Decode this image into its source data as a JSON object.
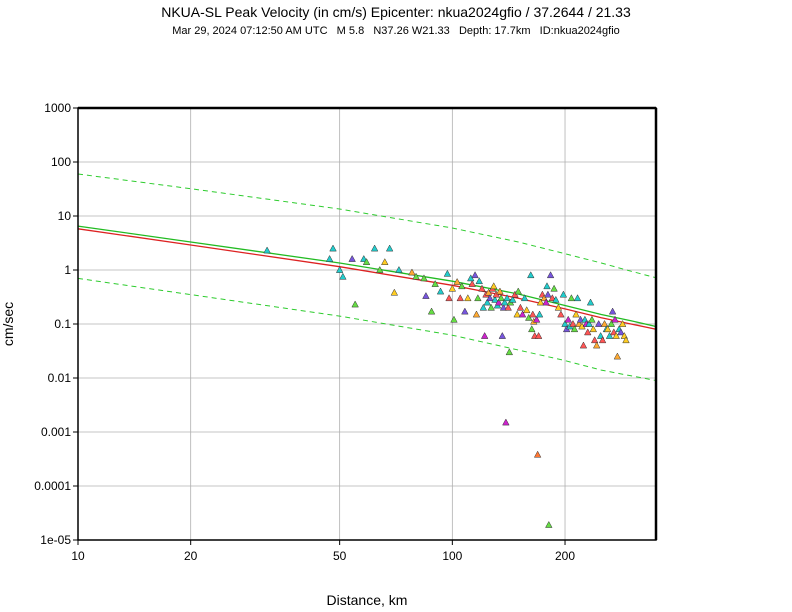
{
  "chart_data": {
    "type": "scatter",
    "title": "NKUA-SL Peak Velocity (in cm/s) Epicenter: nkua2024gfio / 37.2644 / 21.33",
    "subtitle": "Mar 29, 2024 07:12:50 AM UTC   M 5.8   N37.26 W21.33   Depth: 17.7km   ID:nkua2024gfio",
    "xlabel": "Distance, km",
    "ylabel": "cm/sec",
    "xscale": "log",
    "yscale": "log",
    "xlim": [
      10,
      350
    ],
    "ylim": [
      1e-05,
      1000
    ],
    "grid": true,
    "x_ticks": [
      10,
      20,
      50,
      100,
      200
    ],
    "x_tick_labels": [
      "10",
      "20",
      "50",
      "100",
      "200"
    ],
    "y_ticks": [
      1e-05,
      0.0001,
      0.001,
      0.01,
      0.1,
      1,
      10,
      100,
      1000
    ],
    "y_tick_labels": [
      "1e-05",
      "0.0001",
      "0.001",
      "0.01",
      "0.1",
      "1",
      "10",
      "100",
      "1000"
    ],
    "curves": [
      {
        "name": "upper bound",
        "style": "dashed",
        "color": "#2ecc2e",
        "x": [
          10,
          20,
          50,
          100,
          150,
          200,
          250,
          300,
          350
        ],
        "y": [
          60,
          32,
          13.5,
          6.0,
          3.3,
          2.0,
          1.35,
          0.95,
          0.72
        ]
      },
      {
        "name": "median (green)",
        "style": "solid",
        "color": "#22bb22",
        "x": [
          10,
          20,
          50,
          100,
          150,
          200,
          250,
          300,
          350
        ],
        "y": [
          6.5,
          3.3,
          1.35,
          0.62,
          0.36,
          0.22,
          0.15,
          0.115,
          0.09
        ]
      },
      {
        "name": "median (red)",
        "style": "solid",
        "color": "#dd2222",
        "x": [
          10,
          20,
          50,
          100,
          150,
          200,
          250,
          300,
          350
        ],
        "y": [
          5.8,
          2.9,
          1.15,
          0.52,
          0.3,
          0.19,
          0.13,
          0.1,
          0.08
        ]
      },
      {
        "name": "lower bound",
        "style": "dashed",
        "color": "#2ecc2e",
        "x": [
          10,
          20,
          50,
          100,
          150,
          200,
          250,
          300,
          350
        ],
        "y": [
          0.7,
          0.35,
          0.14,
          0.062,
          0.033,
          0.021,
          0.014,
          0.011,
          0.009
        ]
      }
    ],
    "stations": [
      {
        "x": 32,
        "y": 2.3,
        "color": "#22cccc"
      },
      {
        "x": 47,
        "y": 1.6,
        "color": "#22cccc"
      },
      {
        "x": 48,
        "y": 2.5,
        "color": "#22cccc"
      },
      {
        "x": 50,
        "y": 1.0,
        "color": "#22cccc"
      },
      {
        "x": 51,
        "y": 0.75,
        "color": "#22cccc"
      },
      {
        "x": 54,
        "y": 1.6,
        "color": "#7755dd"
      },
      {
        "x": 55,
        "y": 0.23,
        "color": "#66dd44"
      },
      {
        "x": 58,
        "y": 1.6,
        "color": "#22cccc"
      },
      {
        "x": 59,
        "y": 1.4,
        "color": "#66dd44"
      },
      {
        "x": 62,
        "y": 2.5,
        "color": "#22cccc"
      },
      {
        "x": 64,
        "y": 1.0,
        "color": "#66dd44"
      },
      {
        "x": 66,
        "y": 1.4,
        "color": "#ffcc22"
      },
      {
        "x": 68,
        "y": 2.5,
        "color": "#22cccc"
      },
      {
        "x": 70,
        "y": 0.38,
        "color": "#ffcc22"
      },
      {
        "x": 72,
        "y": 1.0,
        "color": "#22cccc"
      },
      {
        "x": 78,
        "y": 0.9,
        "color": "#ffaa33"
      },
      {
        "x": 80,
        "y": 0.75,
        "color": "#66dd44"
      },
      {
        "x": 84,
        "y": 0.7,
        "color": "#66dd44"
      },
      {
        "x": 85,
        "y": 0.33,
        "color": "#7755dd"
      },
      {
        "x": 88,
        "y": 0.17,
        "color": "#66dd44"
      },
      {
        "x": 90,
        "y": 0.55,
        "color": "#66dd44"
      },
      {
        "x": 93,
        "y": 0.4,
        "color": "#22cccc"
      },
      {
        "x": 97,
        "y": 0.85,
        "color": "#22cccc"
      },
      {
        "x": 98,
        "y": 0.3,
        "color": "#ff5555"
      },
      {
        "x": 100,
        "y": 0.45,
        "color": "#ffcc22"
      },
      {
        "x": 101,
        "y": 0.12,
        "color": "#66dd44"
      },
      {
        "x": 103,
        "y": 0.6,
        "color": "#ffaa33"
      },
      {
        "x": 105,
        "y": 0.3,
        "color": "#ff5555"
      },
      {
        "x": 106,
        "y": 0.5,
        "color": "#66dd44"
      },
      {
        "x": 108,
        "y": 0.17,
        "color": "#7755dd"
      },
      {
        "x": 110,
        "y": 0.3,
        "color": "#ffcc22"
      },
      {
        "x": 112,
        "y": 0.7,
        "color": "#22cccc"
      },
      {
        "x": 113,
        "y": 0.55,
        "color": "#ff5555"
      },
      {
        "x": 115,
        "y": 0.8,
        "color": "#7755dd"
      },
      {
        "x": 116,
        "y": 0.15,
        "color": "#ffaa33"
      },
      {
        "x": 117,
        "y": 0.3,
        "color": "#66dd44"
      },
      {
        "x": 118,
        "y": 0.62,
        "color": "#22cccc"
      },
      {
        "x": 120,
        "y": 0.45,
        "color": "#ff5555"
      },
      {
        "x": 121,
        "y": 0.2,
        "color": "#22cccc"
      },
      {
        "x": 122,
        "y": 0.06,
        "color": "#cc22cc"
      },
      {
        "x": 123,
        "y": 0.35,
        "color": "#ff5555"
      },
      {
        "x": 124,
        "y": 0.25,
        "color": "#22cccc"
      },
      {
        "x": 125,
        "y": 0.38,
        "color": "#ffaa33"
      },
      {
        "x": 126,
        "y": 0.3,
        "color": "#7755dd"
      },
      {
        "x": 127,
        "y": 0.2,
        "color": "#66dd44"
      },
      {
        "x": 128,
        "y": 0.45,
        "color": "#ff5555"
      },
      {
        "x": 129,
        "y": 0.5,
        "color": "#ffcc22"
      },
      {
        "x": 130,
        "y": 0.28,
        "color": "#22cccc"
      },
      {
        "x": 131,
        "y": 0.35,
        "color": "#ff5555"
      },
      {
        "x": 132,
        "y": 0.22,
        "color": "#22cccc"
      },
      {
        "x": 133,
        "y": 0.25,
        "color": "#cc22cc"
      },
      {
        "x": 134,
        "y": 0.4,
        "color": "#ffaa33"
      },
      {
        "x": 135,
        "y": 0.3,
        "color": "#66dd44"
      },
      {
        "x": 136,
        "y": 0.06,
        "color": "#7755dd"
      },
      {
        "x": 137,
        "y": 0.2,
        "color": "#7755dd"
      },
      {
        "x": 138,
        "y": 0.25,
        "color": "#22cccc"
      },
      {
        "x": 139,
        "y": 0.0015,
        "color": "#cc22cc"
      },
      {
        "x": 140,
        "y": 0.3,
        "color": "#22cccc"
      },
      {
        "x": 141,
        "y": 0.2,
        "color": "#ff5555"
      },
      {
        "x": 142,
        "y": 0.03,
        "color": "#66dd44"
      },
      {
        "x": 143,
        "y": 0.25,
        "color": "#66dd44"
      },
      {
        "x": 145,
        "y": 0.28,
        "color": "#22cccc"
      },
      {
        "x": 147,
        "y": 0.35,
        "color": "#ff5555"
      },
      {
        "x": 149,
        "y": 0.15,
        "color": "#ffcc22"
      },
      {
        "x": 150,
        "y": 0.4,
        "color": "#66dd44"
      },
      {
        "x": 152,
        "y": 0.2,
        "color": "#ff5555"
      },
      {
        "x": 154,
        "y": 0.15,
        "color": "#cc22cc"
      },
      {
        "x": 156,
        "y": 0.3,
        "color": "#22cccc"
      },
      {
        "x": 158,
        "y": 0.18,
        "color": "#ffcc22"
      },
      {
        "x": 160,
        "y": 0.13,
        "color": "#66dd44"
      },
      {
        "x": 162,
        "y": 0.8,
        "color": "#22cccc"
      },
      {
        "x": 163,
        "y": 0.08,
        "color": "#66dd44"
      },
      {
        "x": 164,
        "y": 0.15,
        "color": "#ff5555"
      },
      {
        "x": 165,
        "y": 0.11,
        "color": "#ffaa33"
      },
      {
        "x": 166,
        "y": 0.06,
        "color": "#ff5555"
      },
      {
        "x": 168,
        "y": 0.12,
        "color": "#cc22cc"
      },
      {
        "x": 169,
        "y": 0.00038,
        "color": "#ff7733"
      },
      {
        "x": 170,
        "y": 0.06,
        "color": "#ff5555"
      },
      {
        "x": 171,
        "y": 0.15,
        "color": "#22cccc"
      },
      {
        "x": 172,
        "y": 0.25,
        "color": "#ffcc22"
      },
      {
        "x": 174,
        "y": 0.35,
        "color": "#ff5555"
      },
      {
        "x": 176,
        "y": 0.3,
        "color": "#ffaa33"
      },
      {
        "x": 178,
        "y": 0.25,
        "color": "#cc22cc"
      },
      {
        "x": 179,
        "y": 0.5,
        "color": "#22cccc"
      },
      {
        "x": 180,
        "y": 0.35,
        "color": "#7755dd"
      },
      {
        "x": 181,
        "y": 1.9e-05,
        "color": "#66dd44"
      },
      {
        "x": 183,
        "y": 0.8,
        "color": "#7755dd"
      },
      {
        "x": 185,
        "y": 0.3,
        "color": "#ff5555"
      },
      {
        "x": 187,
        "y": 0.45,
        "color": "#66dd44"
      },
      {
        "x": 189,
        "y": 0.28,
        "color": "#22cccc"
      },
      {
        "x": 192,
        "y": 0.2,
        "color": "#ffcc22"
      },
      {
        "x": 195,
        "y": 0.15,
        "color": "#ff5555"
      },
      {
        "x": 198,
        "y": 0.35,
        "color": "#22cccc"
      },
      {
        "x": 200,
        "y": 0.1,
        "color": "#22cccc"
      },
      {
        "x": 202,
        "y": 0.08,
        "color": "#7755dd"
      },
      {
        "x": 204,
        "y": 0.12,
        "color": "#cc22cc"
      },
      {
        "x": 206,
        "y": 0.09,
        "color": "#22cccc"
      },
      {
        "x": 208,
        "y": 0.3,
        "color": "#66dd44"
      },
      {
        "x": 210,
        "y": 0.1,
        "color": "#ff5555"
      },
      {
        "x": 212,
        "y": 0.08,
        "color": "#66dd44"
      },
      {
        "x": 214,
        "y": 0.15,
        "color": "#ffcc22"
      },
      {
        "x": 216,
        "y": 0.3,
        "color": "#22cccc"
      },
      {
        "x": 218,
        "y": 0.1,
        "color": "#ffaa33"
      },
      {
        "x": 220,
        "y": 0.12,
        "color": "#7755dd"
      },
      {
        "x": 222,
        "y": 0.09,
        "color": "#ffcc22"
      },
      {
        "x": 224,
        "y": 0.04,
        "color": "#ff5555"
      },
      {
        "x": 226,
        "y": 0.12,
        "color": "#22cccc"
      },
      {
        "x": 228,
        "y": 0.1,
        "color": "#cc22cc"
      },
      {
        "x": 230,
        "y": 0.07,
        "color": "#ff5555"
      },
      {
        "x": 232,
        "y": 0.1,
        "color": "#22cccc"
      },
      {
        "x": 234,
        "y": 0.25,
        "color": "#22cccc"
      },
      {
        "x": 236,
        "y": 0.12,
        "color": "#66dd44"
      },
      {
        "x": 238,
        "y": 0.08,
        "color": "#ffcc22"
      },
      {
        "x": 240,
        "y": 0.05,
        "color": "#ff5555"
      },
      {
        "x": 243,
        "y": 0.04,
        "color": "#ffaa33"
      },
      {
        "x": 246,
        "y": 0.1,
        "color": "#7755dd"
      },
      {
        "x": 249,
        "y": 0.06,
        "color": "#22cccc"
      },
      {
        "x": 252,
        "y": 0.05,
        "color": "#ff5555"
      },
      {
        "x": 255,
        "y": 0.1,
        "color": "#ffaa33"
      },
      {
        "x": 258,
        "y": 0.08,
        "color": "#22cccc"
      },
      {
        "x": 260,
        "y": 0.08,
        "color": "#ffcc22"
      },
      {
        "x": 263,
        "y": 0.06,
        "color": "#22cccc"
      },
      {
        "x": 266,
        "y": 0.1,
        "color": "#66dd44"
      },
      {
        "x": 268,
        "y": 0.17,
        "color": "#7755dd"
      },
      {
        "x": 270,
        "y": 0.07,
        "color": "#ff5555"
      },
      {
        "x": 272,
        "y": 0.12,
        "color": "#cc22cc"
      },
      {
        "x": 274,
        "y": 0.06,
        "color": "#ffcc22"
      },
      {
        "x": 276,
        "y": 0.025,
        "color": "#ffaa33"
      },
      {
        "x": 279,
        "y": 0.08,
        "color": "#22cccc"
      },
      {
        "x": 282,
        "y": 0.07,
        "color": "#7755dd"
      },
      {
        "x": 285,
        "y": 0.1,
        "color": "#ffcc22"
      },
      {
        "x": 288,
        "y": 0.06,
        "color": "#ffcc22"
      },
      {
        "x": 291,
        "y": 0.05,
        "color": "#ffcc22"
      }
    ]
  }
}
